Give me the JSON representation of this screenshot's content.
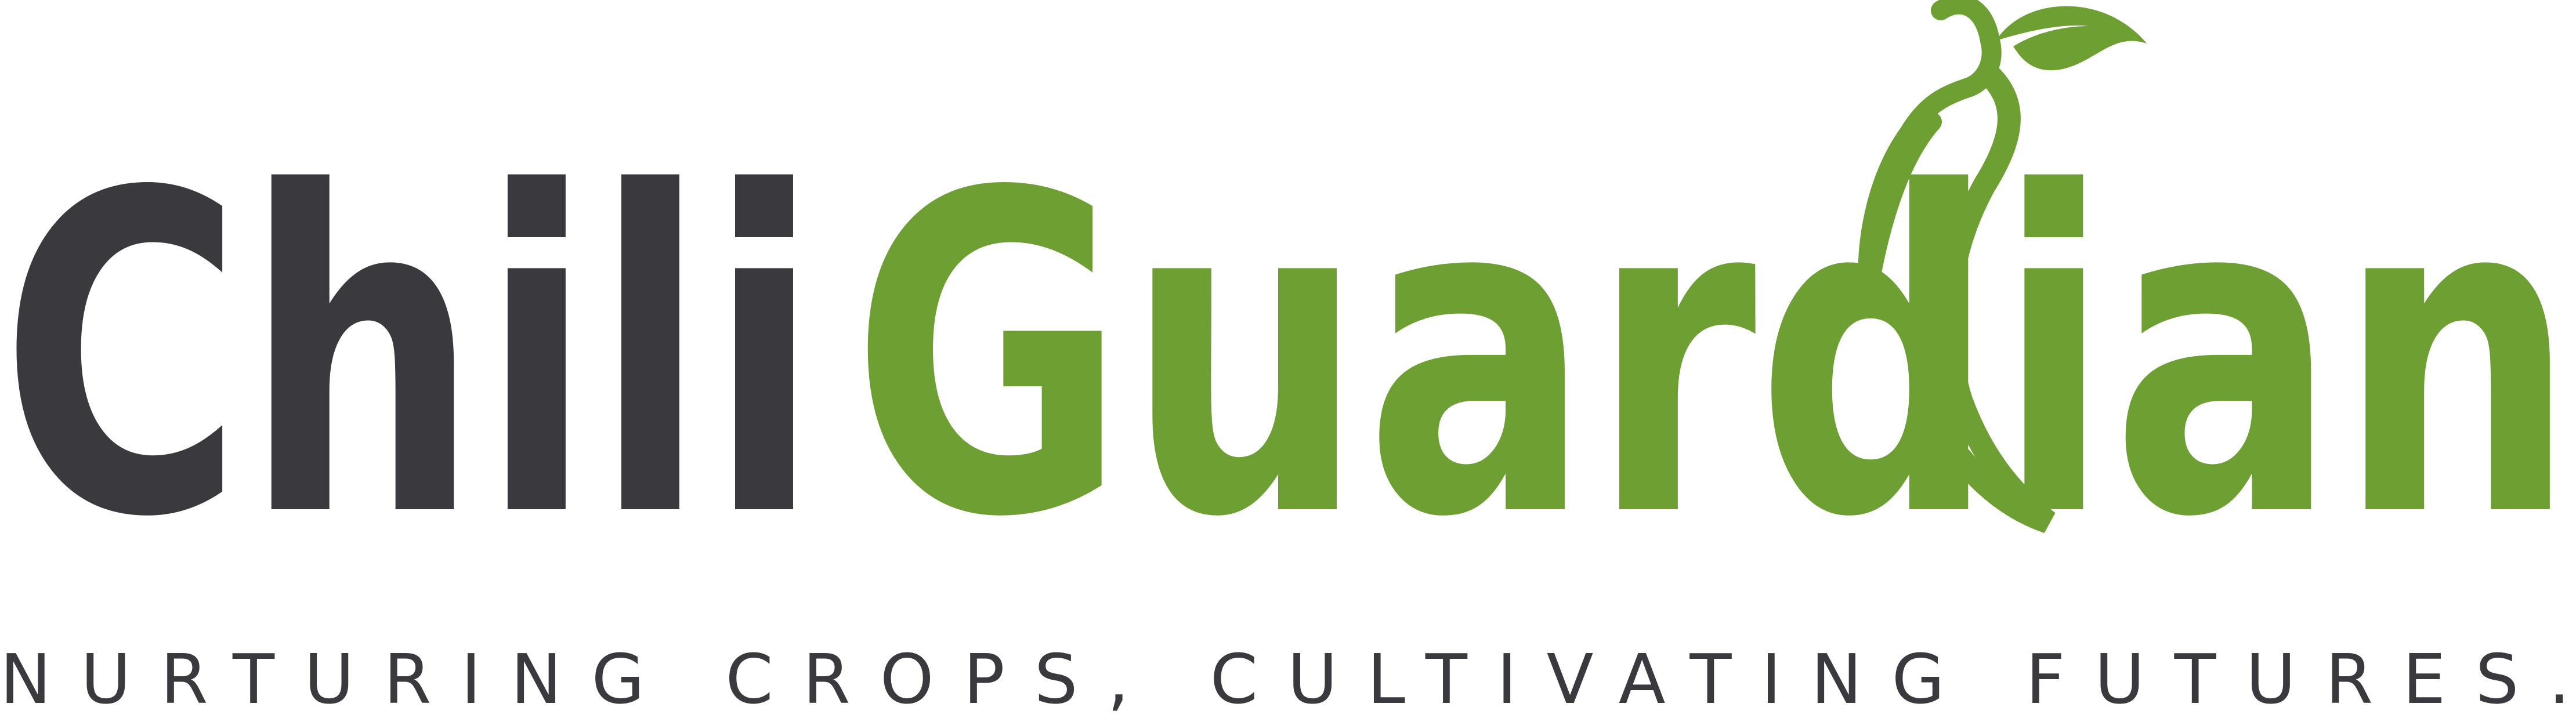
{
  "logo": {
    "brand_part1": "Chili",
    "brand_part2": "Guardian",
    "tagline": "NURTURING CROPS, CULTIVATING FUTURES."
  }
}
